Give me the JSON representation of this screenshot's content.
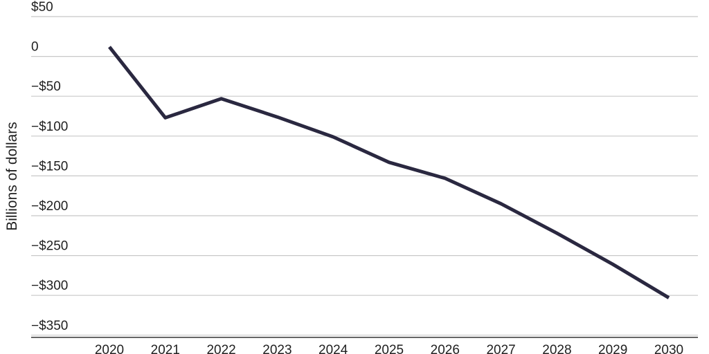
{
  "chart_data": {
    "type": "line",
    "title": "",
    "xlabel": "",
    "ylabel": "Billions of dollars",
    "ylim": [
      -375,
      50
    ],
    "x": [
      "2020",
      "2021",
      "2022",
      "2023",
      "2024",
      "2025",
      "2026",
      "2027",
      "2028",
      "2029",
      "2030"
    ],
    "series": [
      {
        "values": [
          12,
          -77,
          -53,
          -76,
          -101,
          -133,
          -153,
          -185,
          -222,
          -261,
          -303
        ],
        "color": "#2a2840"
      }
    ],
    "y_ticks": [
      {
        "value": 50,
        "label": "$50"
      },
      {
        "value": 0,
        "label": "0"
      },
      {
        "value": -50,
        "label": "−$50"
      },
      {
        "value": -100,
        "label": "−$100"
      },
      {
        "value": -150,
        "label": "−$150"
      },
      {
        "value": -200,
        "label": "−$200"
      },
      {
        "value": -250,
        "label": "−$250"
      },
      {
        "value": -300,
        "label": "−$300"
      },
      {
        "value": -350,
        "label": "−$350"
      }
    ],
    "grid": true,
    "legend": "none"
  }
}
